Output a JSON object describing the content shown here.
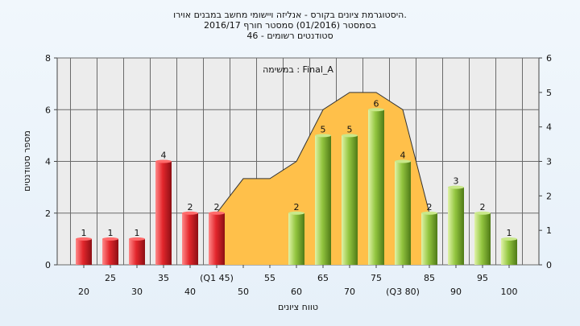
{
  "chart_data": {
    "type": "bar",
    "title_lines": [
      "היסטוגרמת ציונים בקורס - אנליזה ויישומי מחשב במבנים אוירו.",
      "בסמסטר (01/2016) סמסטר חורף 2016/17",
      "סטודנטים רשומים - 46"
    ],
    "annotation": "במשימה : Final_A",
    "xlabel": "טווח ציונים",
    "ylabel": "מספר סטודנטים",
    "ylim": [
      0,
      8
    ],
    "y2lim": [
      0,
      6
    ],
    "yticks": [
      "0",
      "2",
      "4",
      "6",
      "8"
    ],
    "y2ticks": [
      "0",
      "1",
      "2",
      "3",
      "4",
      "5",
      "6"
    ],
    "categories": [
      "20",
      "25",
      "30",
      "35",
      "40",
      "(Q1 45)",
      "50",
      "55",
      "60",
      "65",
      "70",
      "75",
      "(Q3 80)",
      "85",
      "90",
      "95",
      "100"
    ],
    "values": [
      1,
      1,
      1,
      4,
      2,
      2,
      0,
      0,
      2,
      5,
      5,
      6,
      4,
      2,
      3,
      2,
      1
    ],
    "bar_labels": [
      "1",
      "1",
      "1",
      "4",
      "2",
      "2",
      "",
      "",
      "2",
      "5",
      "5",
      "6",
      "4",
      "2",
      "3",
      "2",
      "1"
    ],
    "area_values": [
      null,
      null,
      null,
      null,
      null,
      1.5,
      2.5,
      2.5,
      3,
      4.5,
      5,
      5,
      4.5,
      1.5,
      null,
      null,
      null
    ],
    "area_axis": "right",
    "grid": true,
    "colors": {
      "red": "#d7282f",
      "green": "#8fc23f",
      "area": "#ffc04a",
      "plot_bg": "#ececec"
    }
  }
}
